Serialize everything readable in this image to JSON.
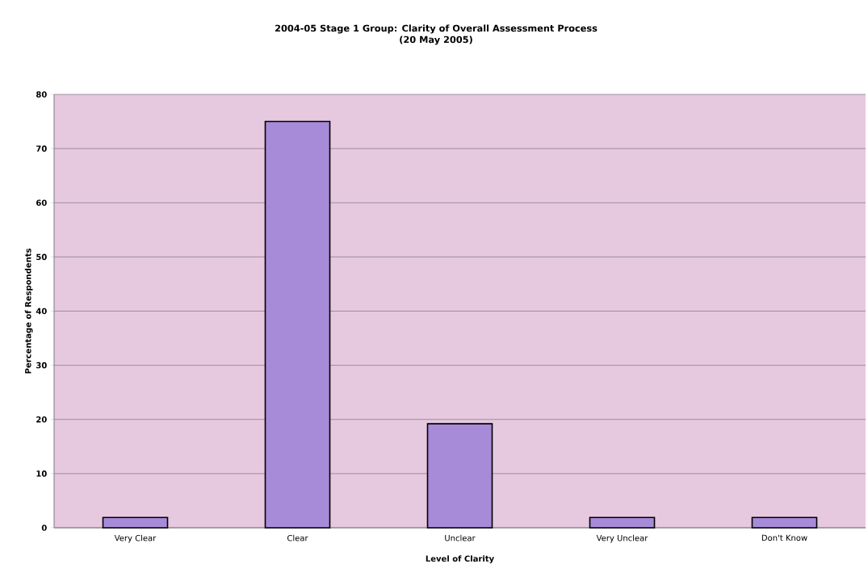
{
  "chart_data": {
    "type": "bar",
    "title": "2004-05 Stage 1 Group: Clarity of Overall Assessment Process",
    "subtitle": "(20 May 2005)",
    "xlabel": "Level of Clarity",
    "ylabel": "Percentage of Respondents",
    "categories": [
      "Very Clear",
      "Clear",
      "Unclear",
      "Very Unclear",
      "Don't Know"
    ],
    "values": [
      1.9,
      75,
      19.2,
      1.9,
      1.9
    ],
    "color": "#a78bd8",
    "ylim": [
      0,
      80
    ],
    "yticks": [
      0,
      10,
      20,
      30,
      40,
      50,
      60,
      70,
      80
    ],
    "grid": "y"
  }
}
